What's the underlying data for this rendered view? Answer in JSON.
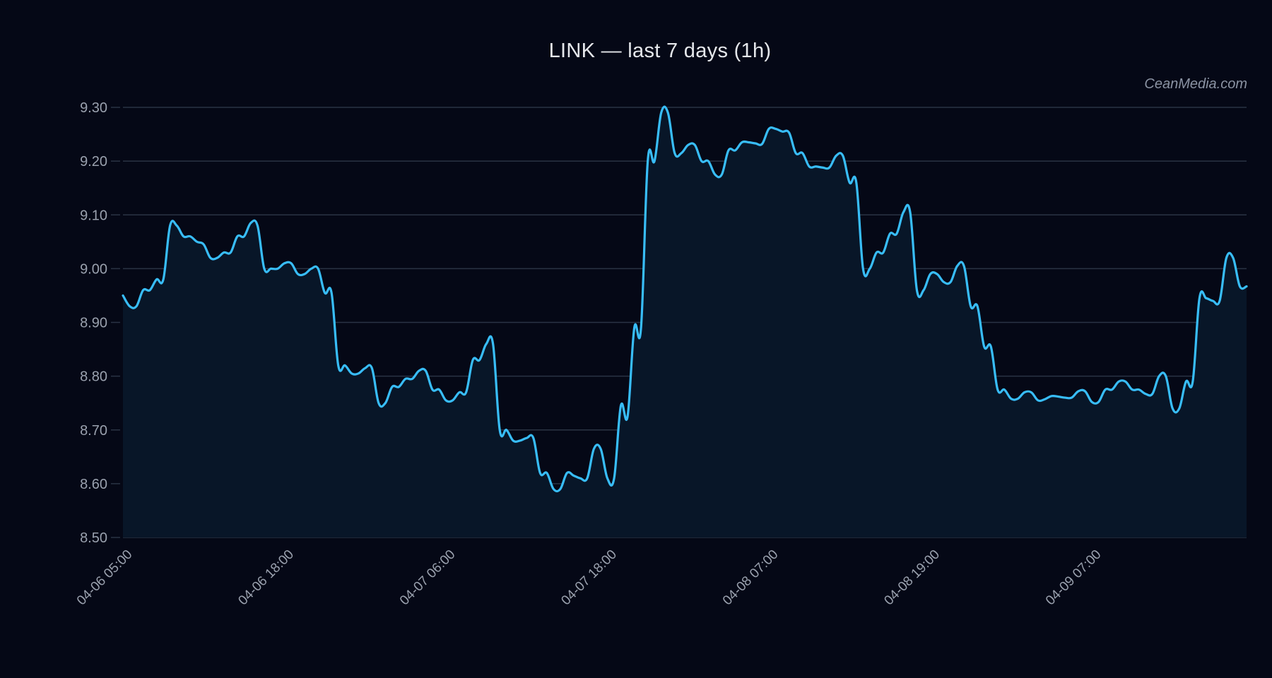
{
  "chart": {
    "title": "LINK — last 7 days (1h)",
    "watermark": "CeanMedia.com",
    "colors": {
      "background": "#050816",
      "line": "#38bdf8",
      "fill": "#081628",
      "grid": "#2a3344",
      "tick_text": "#9aa1ae",
      "title": "#e5e7eb"
    }
  },
  "chart_data": {
    "type": "area",
    "title": "LINK — last 7 days (1h)",
    "xlabel": "",
    "ylabel": "",
    "ylim": [
      8.5,
      9.3
    ],
    "yticks": [
      "8.50",
      "8.60",
      "8.70",
      "8.80",
      "8.90",
      "9.00",
      "9.10",
      "9.20",
      "9.30"
    ],
    "xtick_labels": [
      "04-06 05:00",
      "04-06 18:00",
      "04-07 06:00",
      "04-07 18:00",
      "04-08 07:00",
      "04-08 19:00",
      "04-09 07:00"
    ],
    "xtick_index": [
      0,
      24,
      48,
      72,
      96,
      120,
      144
    ],
    "grid": true,
    "legend": null,
    "series": [
      {
        "name": "LINK",
        "values": [
          8.95,
          8.93,
          8.93,
          8.96,
          8.96,
          8.98,
          8.98,
          9.08,
          9.08,
          9.06,
          9.06,
          9.05,
          9.045,
          9.02,
          9.02,
          9.03,
          9.03,
          9.06,
          9.06,
          9.085,
          9.08,
          9.0,
          9.0,
          9.0,
          9.01,
          9.01,
          8.99,
          8.99,
          9.0,
          9.0,
          8.955,
          8.955,
          8.82,
          8.82,
          8.805,
          8.805,
          8.815,
          8.815,
          8.75,
          8.75,
          8.78,
          8.78,
          8.795,
          8.795,
          8.81,
          8.81,
          8.775,
          8.775,
          8.755,
          8.755,
          8.77,
          8.77,
          8.83,
          8.83,
          8.86,
          8.86,
          8.7,
          8.7,
          8.68,
          8.68,
          8.685,
          8.685,
          8.62,
          8.62,
          8.59,
          8.59,
          8.62,
          8.615,
          8.61,
          8.61,
          8.665,
          8.665,
          8.61,
          8.61,
          8.745,
          8.725,
          8.89,
          8.89,
          9.2,
          9.2,
          9.29,
          9.29,
          9.215,
          9.215,
          9.23,
          9.23,
          9.2,
          9.2,
          9.175,
          9.175,
          9.22,
          9.22,
          9.235,
          9.235,
          9.233,
          9.232,
          9.26,
          9.26,
          9.255,
          9.253,
          9.215,
          9.215,
          9.19,
          9.19,
          9.188,
          9.188,
          9.21,
          9.21,
          9.16,
          9.16,
          9.0,
          9.0,
          9.03,
          9.03,
          9.065,
          9.065,
          9.105,
          9.105,
          8.96,
          8.96,
          8.99,
          8.99,
          8.975,
          8.975,
          9.005,
          9.005,
          8.93,
          8.93,
          8.855,
          8.855,
          8.775,
          8.775,
          8.758,
          8.758,
          8.77,
          8.77,
          8.755,
          8.757,
          8.763,
          8.762,
          8.76,
          8.76,
          8.772,
          8.772,
          8.752,
          8.752,
          8.775,
          8.775,
          8.79,
          8.79,
          8.775,
          8.775,
          8.767,
          8.767,
          8.8,
          8.8,
          8.74,
          8.74,
          8.79,
          8.79,
          8.945,
          8.945,
          8.94,
          8.94,
          9.02,
          9.02,
          8.967,
          8.967
        ]
      }
    ]
  }
}
